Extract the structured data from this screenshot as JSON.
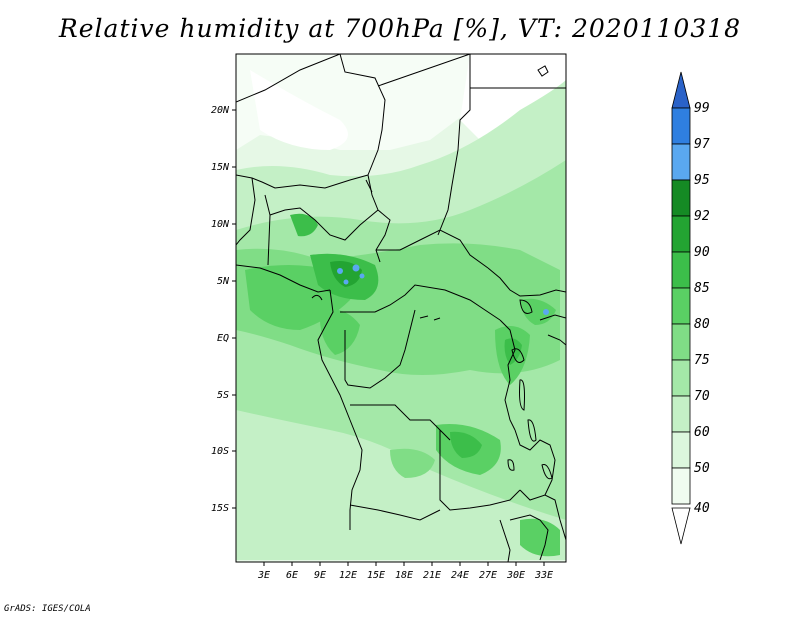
{
  "title": "Relative humidity at 700hPa [%], VT: 2020110318",
  "credit": "GrADS: IGES/COLA",
  "map": {
    "lat_labels": [
      "20N",
      "15N",
      "10N",
      "5N",
      "EQ",
      "5S",
      "10S",
      "15S"
    ],
    "lon_labels": [
      "3E",
      "6E",
      "9E",
      "12E",
      "15E",
      "18E",
      "21E",
      "24E",
      "27E",
      "30E",
      "33E"
    ]
  },
  "colorbar": {
    "levels": [
      "99",
      "97",
      "95",
      "92",
      "90",
      "85",
      "80",
      "75",
      "70",
      "60",
      "50",
      "40"
    ],
    "colors": {
      "above_99": "#2a62c8",
      "97_99": "#2f7fe0",
      "95_97": "#5aa8f0",
      "92_95": "#158a24",
      "90_92": "#23a432",
      "85_90": "#3cbe4a",
      "80_85": "#5ad064",
      "75_80": "#80dd86",
      "70_75": "#a4e8a8",
      "60_70": "#c4f0c6",
      "50_60": "#dcf7dd",
      "40_50": "#f0fcf0",
      "below_40": "#ffffff"
    }
  }
}
